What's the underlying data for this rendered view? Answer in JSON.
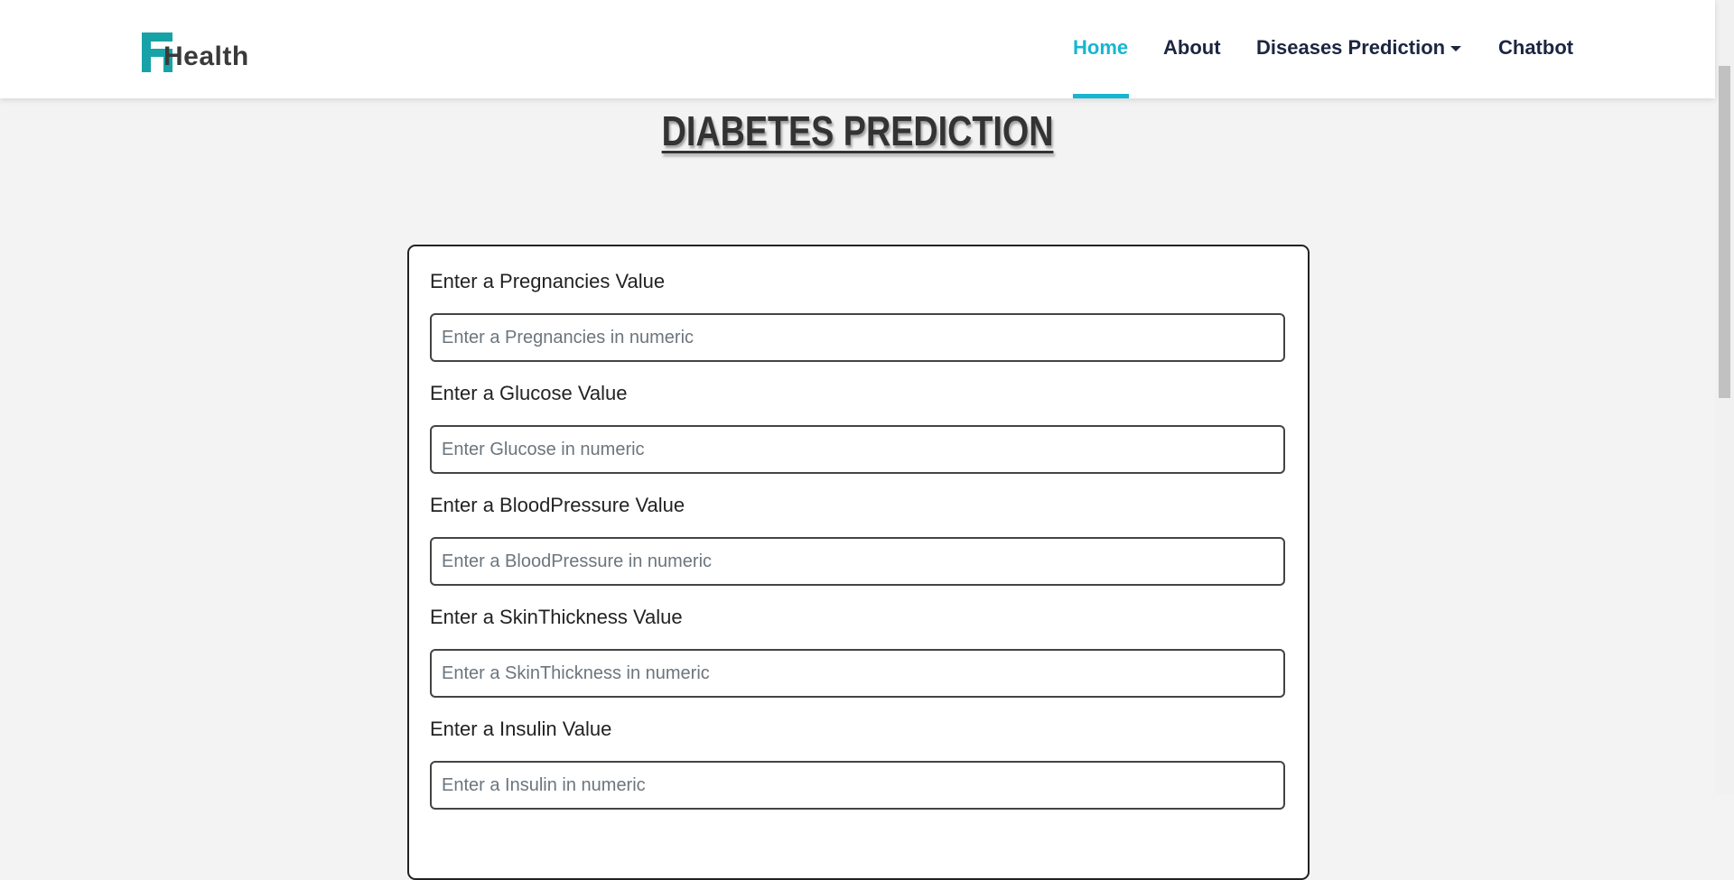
{
  "logo": {
    "text": "Health"
  },
  "nav": {
    "items": [
      "Home",
      "About",
      "Diseases Prediction",
      "Chatbot"
    ]
  },
  "header": {
    "title": "DIABETES PREDICTION"
  },
  "form": {
    "fields": [
      {
        "label": "Enter a Pregnancies Value",
        "placeholder": "Enter a Pregnancies in numeric"
      },
      {
        "label": "Enter a Glucose Value",
        "placeholder": "Enter Glucose in numeric"
      },
      {
        "label": "Enter a BloodPressure Value",
        "placeholder": "Enter a BloodPressure in numeric"
      },
      {
        "label": "Enter a SkinThickness Value",
        "placeholder": "Enter a SkinThickness in numeric"
      },
      {
        "label": "Enter a Insulin Value",
        "placeholder": "Enter a Insulin in numeric"
      }
    ]
  }
}
